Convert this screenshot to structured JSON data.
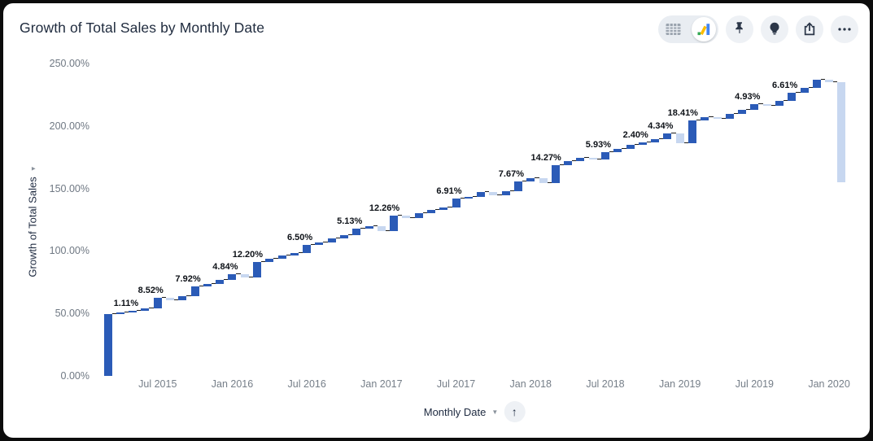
{
  "header": {
    "title": "Growth of Total Sales by Monthly Date",
    "toolbar": {
      "view_toggle": {
        "options": [
          "table-view",
          "chart-view"
        ],
        "selected": "chart-view"
      },
      "buttons": [
        "pin",
        "insights-lightbulb",
        "share-export",
        "more-options"
      ]
    }
  },
  "sort_button": "up-arrow",
  "colors": {
    "bar_increase": "#2b5bb7",
    "bar_decrease": "#c7d7f0",
    "icon_dark": "#2b3648",
    "tick_gray": "#6f7883"
  },
  "chart_data": {
    "type": "bar",
    "subtype": "waterfall",
    "title": "Growth of Total Sales by Monthly Date",
    "grid": false,
    "legend": false,
    "y_axis": {
      "label": "Growth of Total Sales",
      "min": 0,
      "max": 250,
      "ticks": [
        "0.00%",
        "50.00%",
        "100.00%",
        "150.00%",
        "200.00%",
        "250.00%"
      ]
    },
    "x_axis": {
      "label": "Monthly Date",
      "ticks": [
        "Jul 2015",
        "Jan 2016",
        "Jul 2016",
        "Jan 2017",
        "Jul 2017",
        "Jan 2018",
        "Jul 2018",
        "Jan 2019",
        "Jul 2019",
        "Jan 2020"
      ]
    },
    "bars": [
      {
        "month": "Mar 2015",
        "delta": 49.5
      },
      {
        "month": "Apr 2015",
        "delta": 1.2
      },
      {
        "month": "May 2015",
        "delta": 1.11,
        "label": "1.11%"
      },
      {
        "month": "Jun 2015",
        "delta": 2.1
      },
      {
        "month": "Jul 2015",
        "delta": 8.52,
        "label": "8.52%"
      },
      {
        "month": "Aug 2015",
        "delta": -1.8
      },
      {
        "month": "Sep 2015",
        "delta": 3.0
      },
      {
        "month": "Oct 2015",
        "delta": 7.92,
        "label": "7.92%"
      },
      {
        "month": "Nov 2015",
        "delta": 2.2
      },
      {
        "month": "Dec 2015",
        "delta": 2.9
      },
      {
        "month": "Jan 2016",
        "delta": 4.84,
        "label": "4.84%"
      },
      {
        "month": "Feb 2016",
        "delta": -2.6
      },
      {
        "month": "Mar 2016",
        "delta": 12.2,
        "label": "12.20%"
      },
      {
        "month": "Apr 2016",
        "delta": 2.4
      },
      {
        "month": "May 2016",
        "delta": 2.8
      },
      {
        "month": "Jun 2016",
        "delta": 2.2
      },
      {
        "month": "Jul 2016",
        "delta": 6.5,
        "label": "6.50%"
      },
      {
        "month": "Aug 2016",
        "delta": 1.8
      },
      {
        "month": "Sep 2016",
        "delta": 3.1
      },
      {
        "month": "Oct 2016",
        "delta": 2.5
      },
      {
        "month": "Nov 2016",
        "delta": 5.13,
        "label": "5.13%"
      },
      {
        "month": "Dec 2016",
        "delta": 2.0
      },
      {
        "month": "Jan 2017",
        "delta": -3.8
      },
      {
        "month": "Feb 2017",
        "delta": 12.26,
        "label": "12.26%"
      },
      {
        "month": "Mar 2017",
        "delta": -1.6
      },
      {
        "month": "Apr 2017",
        "delta": 3.9
      },
      {
        "month": "May 2017",
        "delta": 2.6
      },
      {
        "month": "Jun 2017",
        "delta": 2.0
      },
      {
        "month": "Jul 2017",
        "delta": 6.91,
        "label": "6.91%"
      },
      {
        "month": "Aug 2017",
        "delta": 1.7
      },
      {
        "month": "Sep 2017",
        "delta": 3.4
      },
      {
        "month": "Oct 2017",
        "delta": -2.1
      },
      {
        "month": "Nov 2017",
        "delta": 3.2
      },
      {
        "month": "Dec 2017",
        "delta": 7.67,
        "label": "7.67%"
      },
      {
        "month": "Jan 2018",
        "delta": 2.3
      },
      {
        "month": "Feb 2018",
        "delta": -3.4
      },
      {
        "month": "Mar 2018",
        "delta": 14.27,
        "label": "14.27%"
      },
      {
        "month": "Apr 2018",
        "delta": 3.0
      },
      {
        "month": "May 2018",
        "delta": 2.6
      },
      {
        "month": "Jun 2018",
        "delta": -1.2
      },
      {
        "month": "Jul 2018",
        "delta": 5.93,
        "label": "5.93%"
      },
      {
        "month": "Aug 2018",
        "delta": 2.2
      },
      {
        "month": "Sep 2018",
        "delta": 3.4
      },
      {
        "month": "Oct 2018",
        "delta": 2.4,
        "label": "2.40%"
      },
      {
        "month": "Nov 2018",
        "delta": 2.6
      },
      {
        "month": "Dec 2018",
        "delta": 4.34,
        "label": "4.34%"
      },
      {
        "month": "Jan 2019",
        "delta": -8.2
      },
      {
        "month": "Feb 2019",
        "delta": 18.41,
        "label": "18.41%"
      },
      {
        "month": "Mar 2019",
        "delta": 2.9
      },
      {
        "month": "Apr 2019",
        "delta": -1.6
      },
      {
        "month": "May 2019",
        "delta": 4.0
      },
      {
        "month": "Jun 2019",
        "delta": 3.2
      },
      {
        "month": "Jul 2019",
        "delta": 4.93,
        "label": "4.93%"
      },
      {
        "month": "Aug 2019",
        "delta": -1.4
      },
      {
        "month": "Sep 2019",
        "delta": 3.6
      },
      {
        "month": "Oct 2019",
        "delta": 6.61,
        "label": "6.61%"
      },
      {
        "month": "Nov 2019",
        "delta": 4.2
      },
      {
        "month": "Dec 2019",
        "delta": 6.0
      },
      {
        "month": "Jan 2020",
        "delta": -1.5
      },
      {
        "month": "Feb 2020",
        "delta": -80.5
      }
    ]
  }
}
